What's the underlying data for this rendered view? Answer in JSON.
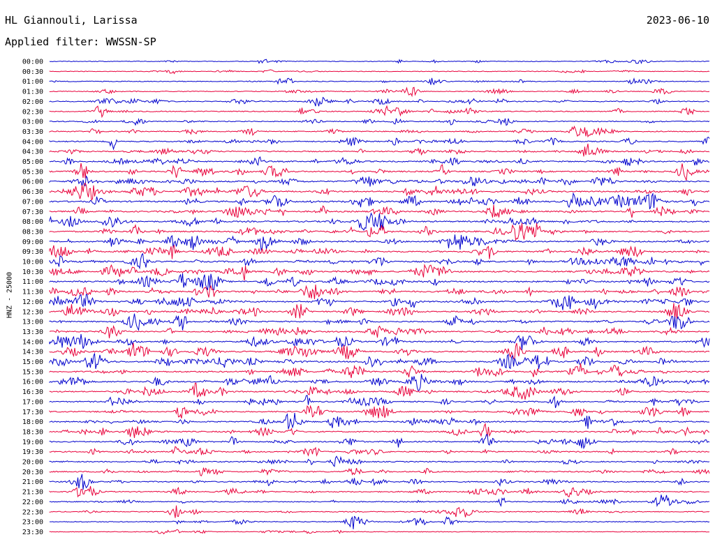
{
  "header": {
    "station": "HL Giannouli, Larissa",
    "date": "2023-06-10",
    "filter": "Applied filter: WWSSN-SP"
  },
  "axis": {
    "ylabel": "HNZ - 25000"
  },
  "colors": {
    "trace_a": "#0000cc",
    "trace_b": "#e8003a",
    "background": "#ffffff"
  },
  "chart_data": {
    "type": "line",
    "description": "24-hour helicorder, one trace per 30-minute row, colours alternating blue/red",
    "ylabel": "HNZ - 25000",
    "rows": [
      "00:00",
      "00:30",
      "01:00",
      "01:30",
      "02:00",
      "02:30",
      "03:00",
      "03:30",
      "04:00",
      "04:30",
      "05:00",
      "05:30",
      "06:00",
      "06:30",
      "07:00",
      "07:30",
      "08:00",
      "08:30",
      "09:00",
      "09:30",
      "10:00",
      "10:30",
      "11:00",
      "11:30",
      "12:00",
      "12:30",
      "13:00",
      "13:30",
      "14:00",
      "14:30",
      "15:00",
      "15:30",
      "16:00",
      "16:30",
      "17:00",
      "17:30",
      "18:00",
      "18:30",
      "19:00",
      "19:30",
      "20:00",
      "20:30",
      "21:00",
      "21:30",
      "22:00",
      "22:30",
      "23:00",
      "23:30"
    ],
    "row_activity": [
      0.15,
      0.15,
      0.25,
      0.25,
      0.45,
      0.4,
      0.4,
      0.45,
      0.55,
      0.55,
      0.7,
      0.75,
      0.8,
      0.85,
      0.9,
      0.8,
      0.8,
      0.8,
      0.85,
      0.85,
      0.85,
      0.85,
      0.85,
      0.85,
      0.85,
      0.75,
      0.7,
      0.7,
      0.7,
      0.75,
      0.8,
      0.8,
      0.75,
      0.7,
      0.6,
      0.65,
      0.6,
      0.6,
      0.6,
      0.55,
      0.5,
      0.55,
      0.55,
      0.5,
      0.4,
      0.35,
      0.3,
      0.15
    ]
  }
}
